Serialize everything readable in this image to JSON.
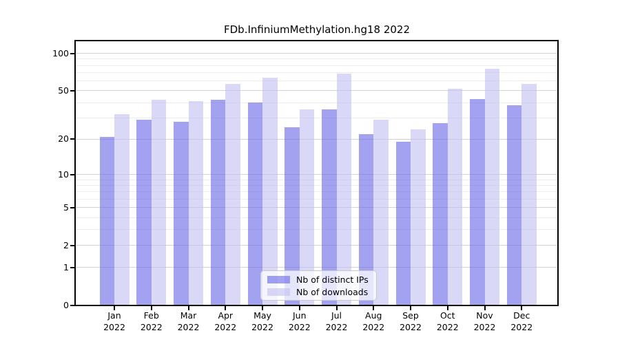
{
  "chart_data": {
    "type": "bar",
    "title": "FDb.InfiniumMethylation.hg18 2022",
    "categories": [
      "Jan",
      "Feb",
      "Mar",
      "Apr",
      "May",
      "Jun",
      "Jul",
      "Aug",
      "Sep",
      "Oct",
      "Nov",
      "Dec"
    ],
    "year_label": "2022",
    "series": [
      {
        "name": "Nb of distinct IPs",
        "color_hex": "#a2a2f0",
        "fill": "rgba(100,100,230,0.6)",
        "values": [
          21,
          29,
          28,
          42,
          40,
          25,
          35,
          22,
          19,
          27,
          43,
          38
        ]
      },
      {
        "name": "Nb of downloads",
        "color_hex": "#d9d9f7",
        "fill": "rgba(192,192,242,0.6)",
        "values": [
          32,
          42,
          41,
          57,
          64,
          35,
          69,
          29,
          24,
          52,
          75,
          57
        ]
      }
    ],
    "yscale": "log1p",
    "yticks": [
      0,
      1,
      2,
      5,
      10,
      20,
      50,
      100
    ],
    "minor_gridlines": [
      3,
      4,
      6,
      7,
      8,
      9,
      30,
      40,
      60,
      70,
      80,
      90
    ],
    "ylim": [
      0,
      127
    ],
    "grid": true,
    "legend_position": "bottom-center"
  }
}
